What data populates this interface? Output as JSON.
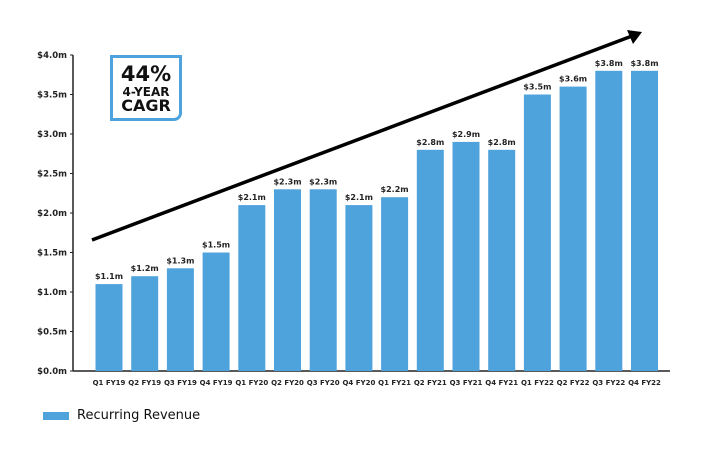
{
  "chart_data": {
    "type": "bar",
    "categories": [
      "Q1 FY19",
      "Q2 FY19",
      "Q3 FY19",
      "Q4 FY19",
      "Q1 FY20",
      "Q2 FY20",
      "Q3 FY20",
      "Q4 FY20",
      "Q1 FY21",
      "Q2 FY21",
      "Q3 FY21",
      "Q4 FY21",
      "Q1 FY22",
      "Q2 FY22",
      "Q3 FY22",
      "Q4 FY22"
    ],
    "series": [
      {
        "name": "Recurring Revenue",
        "values": [
          1.1,
          1.2,
          1.3,
          1.5,
          2.1,
          2.3,
          2.3,
          2.1,
          2.2,
          2.8,
          2.9,
          2.8,
          3.5,
          3.6,
          3.8,
          3.8
        ]
      }
    ],
    "data_labels": [
      "$1.1m",
      "$1.2m",
      "$1.3m",
      "$1.5m",
      "$2.1m",
      "$2.3m",
      "$2.3m",
      "$2.1m",
      "$2.2m",
      "$2.8m",
      "$2.9m",
      "$2.8m",
      "$3.5m",
      "$3.6m",
      "$3.8m",
      "$3.8m"
    ],
    "y_ticks": [
      "$0.0m",
      "$0.5m",
      "$1.0m",
      "$1.5m",
      "$2.0m",
      "$2.5m",
      "$3.0m",
      "$3.5m",
      "$4.0m"
    ],
    "ylim": [
      0,
      4.0
    ],
    "grid": false,
    "legend_position": "bottom-left",
    "bar_color": "#4fa3dc",
    "annotation": {
      "percent": "44%",
      "line1": "4-YEAR",
      "line2": "CAGR"
    },
    "trend_arrow": true
  }
}
